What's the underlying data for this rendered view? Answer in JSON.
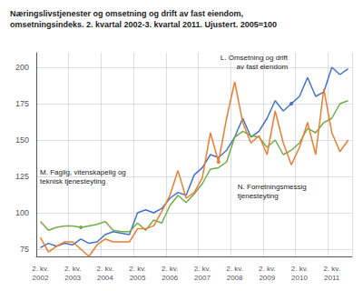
{
  "chart_data": {
    "type": "line",
    "title": "Næringslivstjenester og omsetning og drift av fast eiendom,\nomsetningsindeks. 2. kvartal 2002-3. kvartal 2011. Ujustert. 2005=100",
    "categories": [
      "2. kv.\n2002",
      null,
      null,
      null,
      "2. kv.\n2003",
      null,
      null,
      null,
      "2. kv.\n2004",
      null,
      null,
      null,
      "2. kv.\n2005",
      null,
      null,
      null,
      "2. kv.\n2006",
      null,
      null,
      null,
      "2. kv.\n2007",
      null,
      null,
      null,
      "2. kv.\n2008",
      null,
      null,
      null,
      "2. kv.\n2009",
      null,
      null,
      null,
      "2. kv.\n2010",
      null,
      null,
      null,
      "2. kv.\n2011",
      null,
      null
    ],
    "series": [
      {
        "name": "L. Omsetning og drift\nav fast eiendom",
        "color": "#4472c4",
        "values": [
          76,
          79,
          77,
          79,
          78,
          82,
          79,
          80,
          85,
          87,
          86,
          85,
          100,
          102,
          100,
          103,
          110,
          114,
          112,
          126,
          131,
          140,
          138,
          143,
          152,
          165,
          152,
          156,
          165,
          177,
          170,
          175,
          180,
          193,
          180,
          183,
          200,
          195,
          199
        ]
      },
      {
        "name": "M. Faglig, vitenskapelig og\nteknisk tjenesteyting",
        "color": "#70ad47",
        "values": [
          94,
          88,
          90,
          91,
          91,
          90,
          91,
          92,
          94,
          88,
          87,
          87,
          93,
          88,
          95,
          93,
          105,
          112,
          107,
          113,
          120,
          130,
          131,
          135,
          152,
          156,
          153,
          152,
          145,
          150,
          140,
          143,
          148,
          158,
          155,
          162,
          165,
          175,
          177
        ]
      },
      {
        "name": "N. Forretningsmessig\ntjenesteyting",
        "color": "#ed7d31",
        "values": [
          83,
          73,
          77,
          80,
          80,
          75,
          70,
          78,
          82,
          80,
          80,
          80,
          89,
          89,
          91,
          101,
          112,
          129,
          110,
          114,
          124,
          155,
          135,
          165,
          190,
          162,
          148,
          153,
          140,
          170,
          148,
          133,
          145,
          162,
          140,
          185,
          155,
          142,
          150
        ]
      }
    ],
    "ylim": [
      70,
      210
    ],
    "yticks": [
      75,
      100,
      125,
      150,
      175,
      200
    ],
    "grid": true
  }
}
